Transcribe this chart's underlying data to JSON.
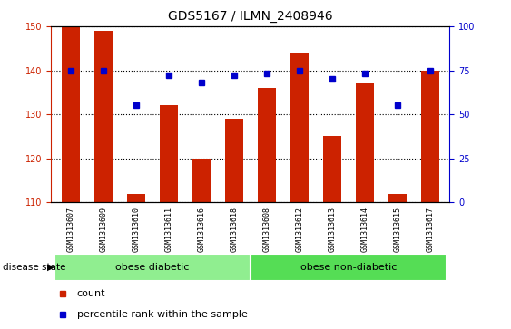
{
  "title": "GDS5167 / ILMN_2408946",
  "samples": [
    "GSM1313607",
    "GSM1313609",
    "GSM1313610",
    "GSM1313611",
    "GSM1313616",
    "GSM1313618",
    "GSM1313608",
    "GSM1313612",
    "GSM1313613",
    "GSM1313614",
    "GSM1313615",
    "GSM1313617"
  ],
  "counts": [
    150,
    149,
    112,
    132,
    120,
    129,
    136,
    144,
    125,
    137,
    112,
    140
  ],
  "percentiles": [
    75,
    75,
    55,
    72,
    68,
    72,
    73,
    75,
    70,
    73,
    55,
    75
  ],
  "bar_color": "#cc2200",
  "dot_color": "#0000cc",
  "ylim_left": [
    110,
    150
  ],
  "ylim_right": [
    0,
    100
  ],
  "yticks_left": [
    110,
    120,
    130,
    140,
    150
  ],
  "yticks_right": [
    0,
    25,
    50,
    75,
    100
  ],
  "groups": [
    {
      "label": "obese diabetic",
      "start": 0,
      "end": 6,
      "color": "#90ee90"
    },
    {
      "label": "obese non-diabetic",
      "start": 6,
      "end": 12,
      "color": "#55dd55"
    }
  ],
  "disease_state_label": "disease state",
  "legend_count_label": "count",
  "legend_percentile_label": "percentile rank within the sample",
  "background_color": "#ffffff",
  "tick_bg_color": "#cccccc",
  "title_fontsize": 10,
  "tick_fontsize": 7
}
